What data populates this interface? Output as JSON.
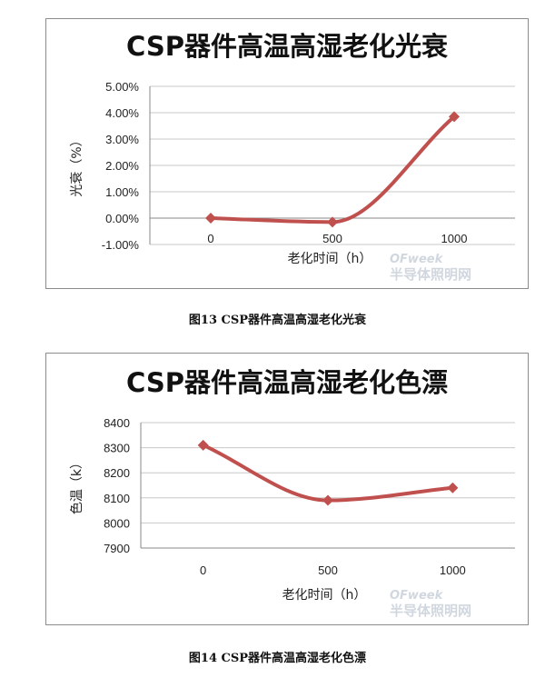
{
  "captions": {
    "fig13": "图13 CSP器件高温高湿老化光衰",
    "fig14": "图14 CSP器件高温高湿老化色漂"
  },
  "watermark": {
    "logo": "OFweek",
    "text": "半导体照明网"
  },
  "colors": {
    "series": "#c0504d",
    "grid": "#c8c8c8",
    "axis": "#888888"
  },
  "chart_data": [
    {
      "type": "line",
      "title": "CSP器件高温高湿老化光衰",
      "xlabel": "老化时间（h）",
      "ylabel": "光衰（%）",
      "categories": [
        "0",
        "500",
        "1000"
      ],
      "series": [
        {
          "values": [
            0.0,
            -0.15,
            3.85
          ]
        }
      ],
      "ylim": [
        -1.0,
        5.0
      ],
      "yticks": [
        "-1.00%",
        "0.00%",
        "1.00%",
        "2.00%",
        "3.00%",
        "4.00%",
        "5.00%"
      ],
      "grid": true,
      "smooth": true,
      "marker": "diamond",
      "x_axis_crosses_at": 0
    },
    {
      "type": "line",
      "title": "CSP器件高温高湿老化色漂",
      "xlabel": "老化时间（h）",
      "ylabel": "色温（k）",
      "categories": [
        "0",
        "500",
        "1000"
      ],
      "series": [
        {
          "values": [
            8310,
            8090,
            8140
          ]
        }
      ],
      "ylim": [
        7900,
        8400
      ],
      "yticks": [
        "7900",
        "8000",
        "8100",
        "8200",
        "8300",
        "8400"
      ],
      "grid": true,
      "smooth": true,
      "marker": "diamond"
    }
  ]
}
